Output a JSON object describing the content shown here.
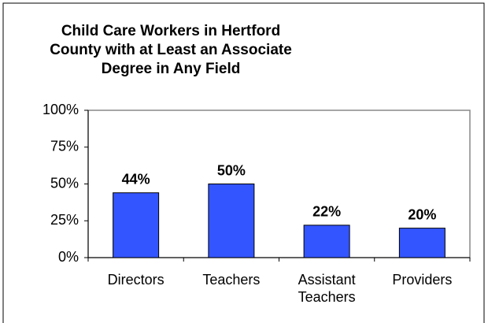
{
  "chart_data": {
    "type": "bar",
    "title": "Child Care Workers in Hertford County with at Least an Associate Degree in Any Field",
    "categories": [
      "Directors",
      "Teachers",
      "Assistant Teachers",
      "Providers"
    ],
    "values": [
      44,
      50,
      22,
      20
    ],
    "value_labels": [
      "44%",
      "50%",
      "22%",
      "20%"
    ],
    "color": "#3355ff",
    "ylim": [
      0,
      100
    ],
    "yticks": [
      {
        "value": 0,
        "label": "0%"
      },
      {
        "value": 25,
        "label": "25%"
      },
      {
        "value": 50,
        "label": "50%"
      },
      {
        "value": 75,
        "label": "75%"
      },
      {
        "value": 100,
        "label": "100%"
      }
    ],
    "grid": false
  }
}
